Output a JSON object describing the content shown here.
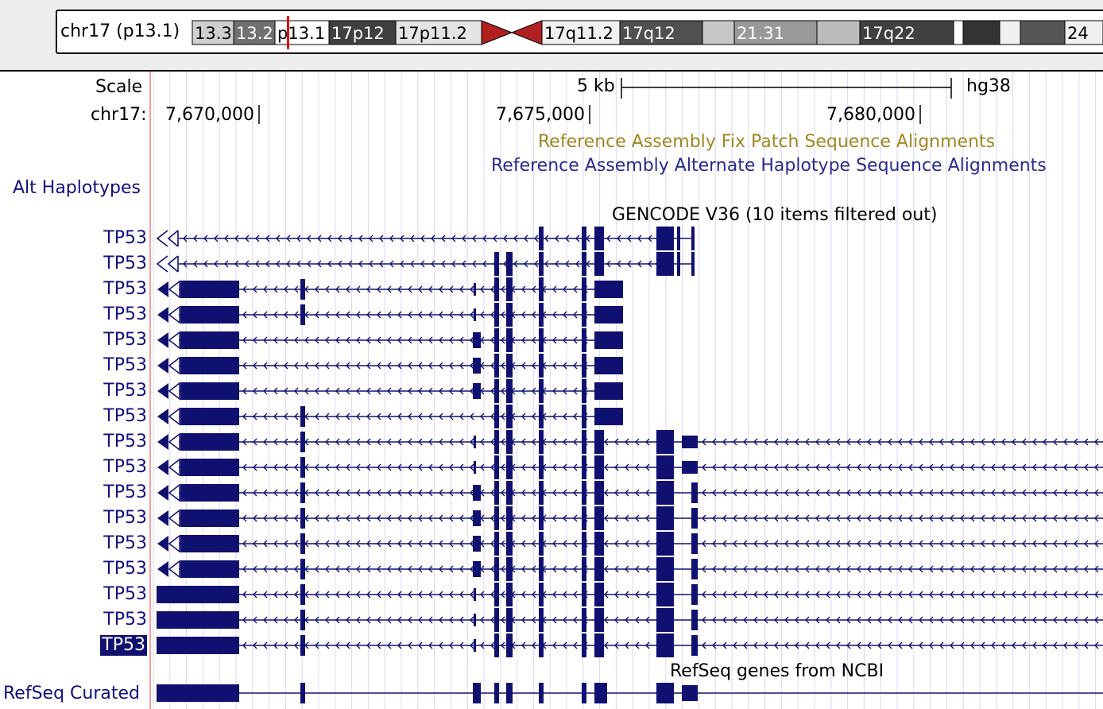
{
  "ideogram": {
    "chromosome_label": "chr17 (p13.1)",
    "bands": [
      "13.3",
      "13.2",
      "p13.1",
      "17p12",
      "17p11.2",
      "17q11.2",
      "17q12",
      "21.31",
      "17q22",
      "24"
    ],
    "highlight_color": "#e00000",
    "centromere_color": "#b02020"
  },
  "scale": {
    "label": "Scale",
    "bar_label": "5 kb",
    "assembly": "hg38"
  },
  "position": {
    "chrom_label": "chr17:",
    "ticks": [
      "7,670,000",
      "7,675,000",
      "7,680,000"
    ]
  },
  "tracks": {
    "fix_patch_title": "Reference Assembly Fix Patch Sequence Alignments",
    "alt_haplotype_title": "Reference Assembly Alternate Haplotype Sequence Alignments",
    "alt_haplotypes_label": "Alt Haplotypes",
    "gencode_title": "GENCODE V36 (10 items filtered out)",
    "gencode_rows": [
      "TP53",
      "TP53",
      "TP53",
      "TP53",
      "TP53",
      "TP53",
      "TP53",
      "TP53",
      "TP53",
      "TP53",
      "TP53",
      "TP53",
      "TP53",
      "TP53",
      "TP53",
      "TP53",
      "TP53"
    ],
    "refseq_title": "RefSeq genes from NCBI",
    "refseq_label": "RefSeq Curated"
  },
  "colors": {
    "gene": "#101070",
    "gridline": "#d8d8f0",
    "ruler_line": "#f08080",
    "fix_patch_text": "#a08820",
    "alt_text": "#2a2a90"
  }
}
